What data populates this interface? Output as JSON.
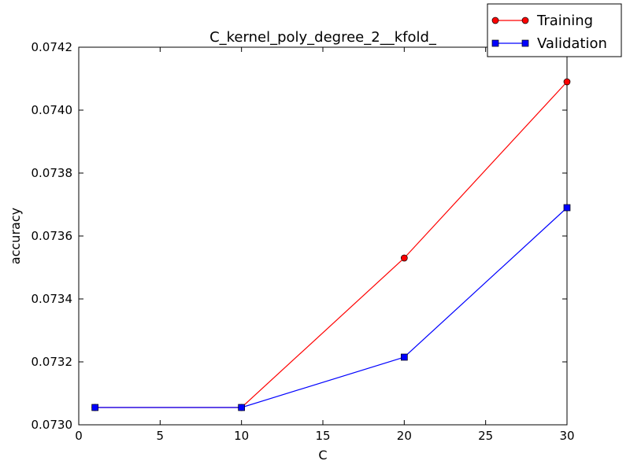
{
  "chart_data": {
    "type": "line",
    "title": "C_kernel_poly_degree_2__kfold_",
    "xlabel": "C",
    "ylabel": "accuracy",
    "xlim": [
      0,
      30
    ],
    "ylim": [
      0.073,
      0.0742
    ],
    "x_ticks": [
      0,
      5,
      10,
      15,
      20,
      25,
      30
    ],
    "y_ticks": [
      0.073,
      0.0732,
      0.0734,
      0.0736,
      0.0738,
      0.074,
      0.0742
    ],
    "x_tick_labels": [
      "0",
      "5",
      "10",
      "15",
      "20",
      "25",
      "30"
    ],
    "y_tick_labels": [
      "0.0730",
      "0.0732",
      "0.0734",
      "0.0736",
      "0.0738",
      "0.0740",
      "0.0742"
    ],
    "grid": false,
    "legend_position": "top-right",
    "x": [
      1,
      10,
      20,
      30
    ],
    "series": [
      {
        "name": "Training",
        "values": [
          0.073055,
          0.073055,
          0.07353,
          0.07409
        ],
        "color": "#ff0000",
        "marker": "circle"
      },
      {
        "name": "Validation",
        "values": [
          0.073055,
          0.073055,
          0.073215,
          0.07369
        ],
        "color": "#0000ff",
        "marker": "square"
      }
    ]
  }
}
